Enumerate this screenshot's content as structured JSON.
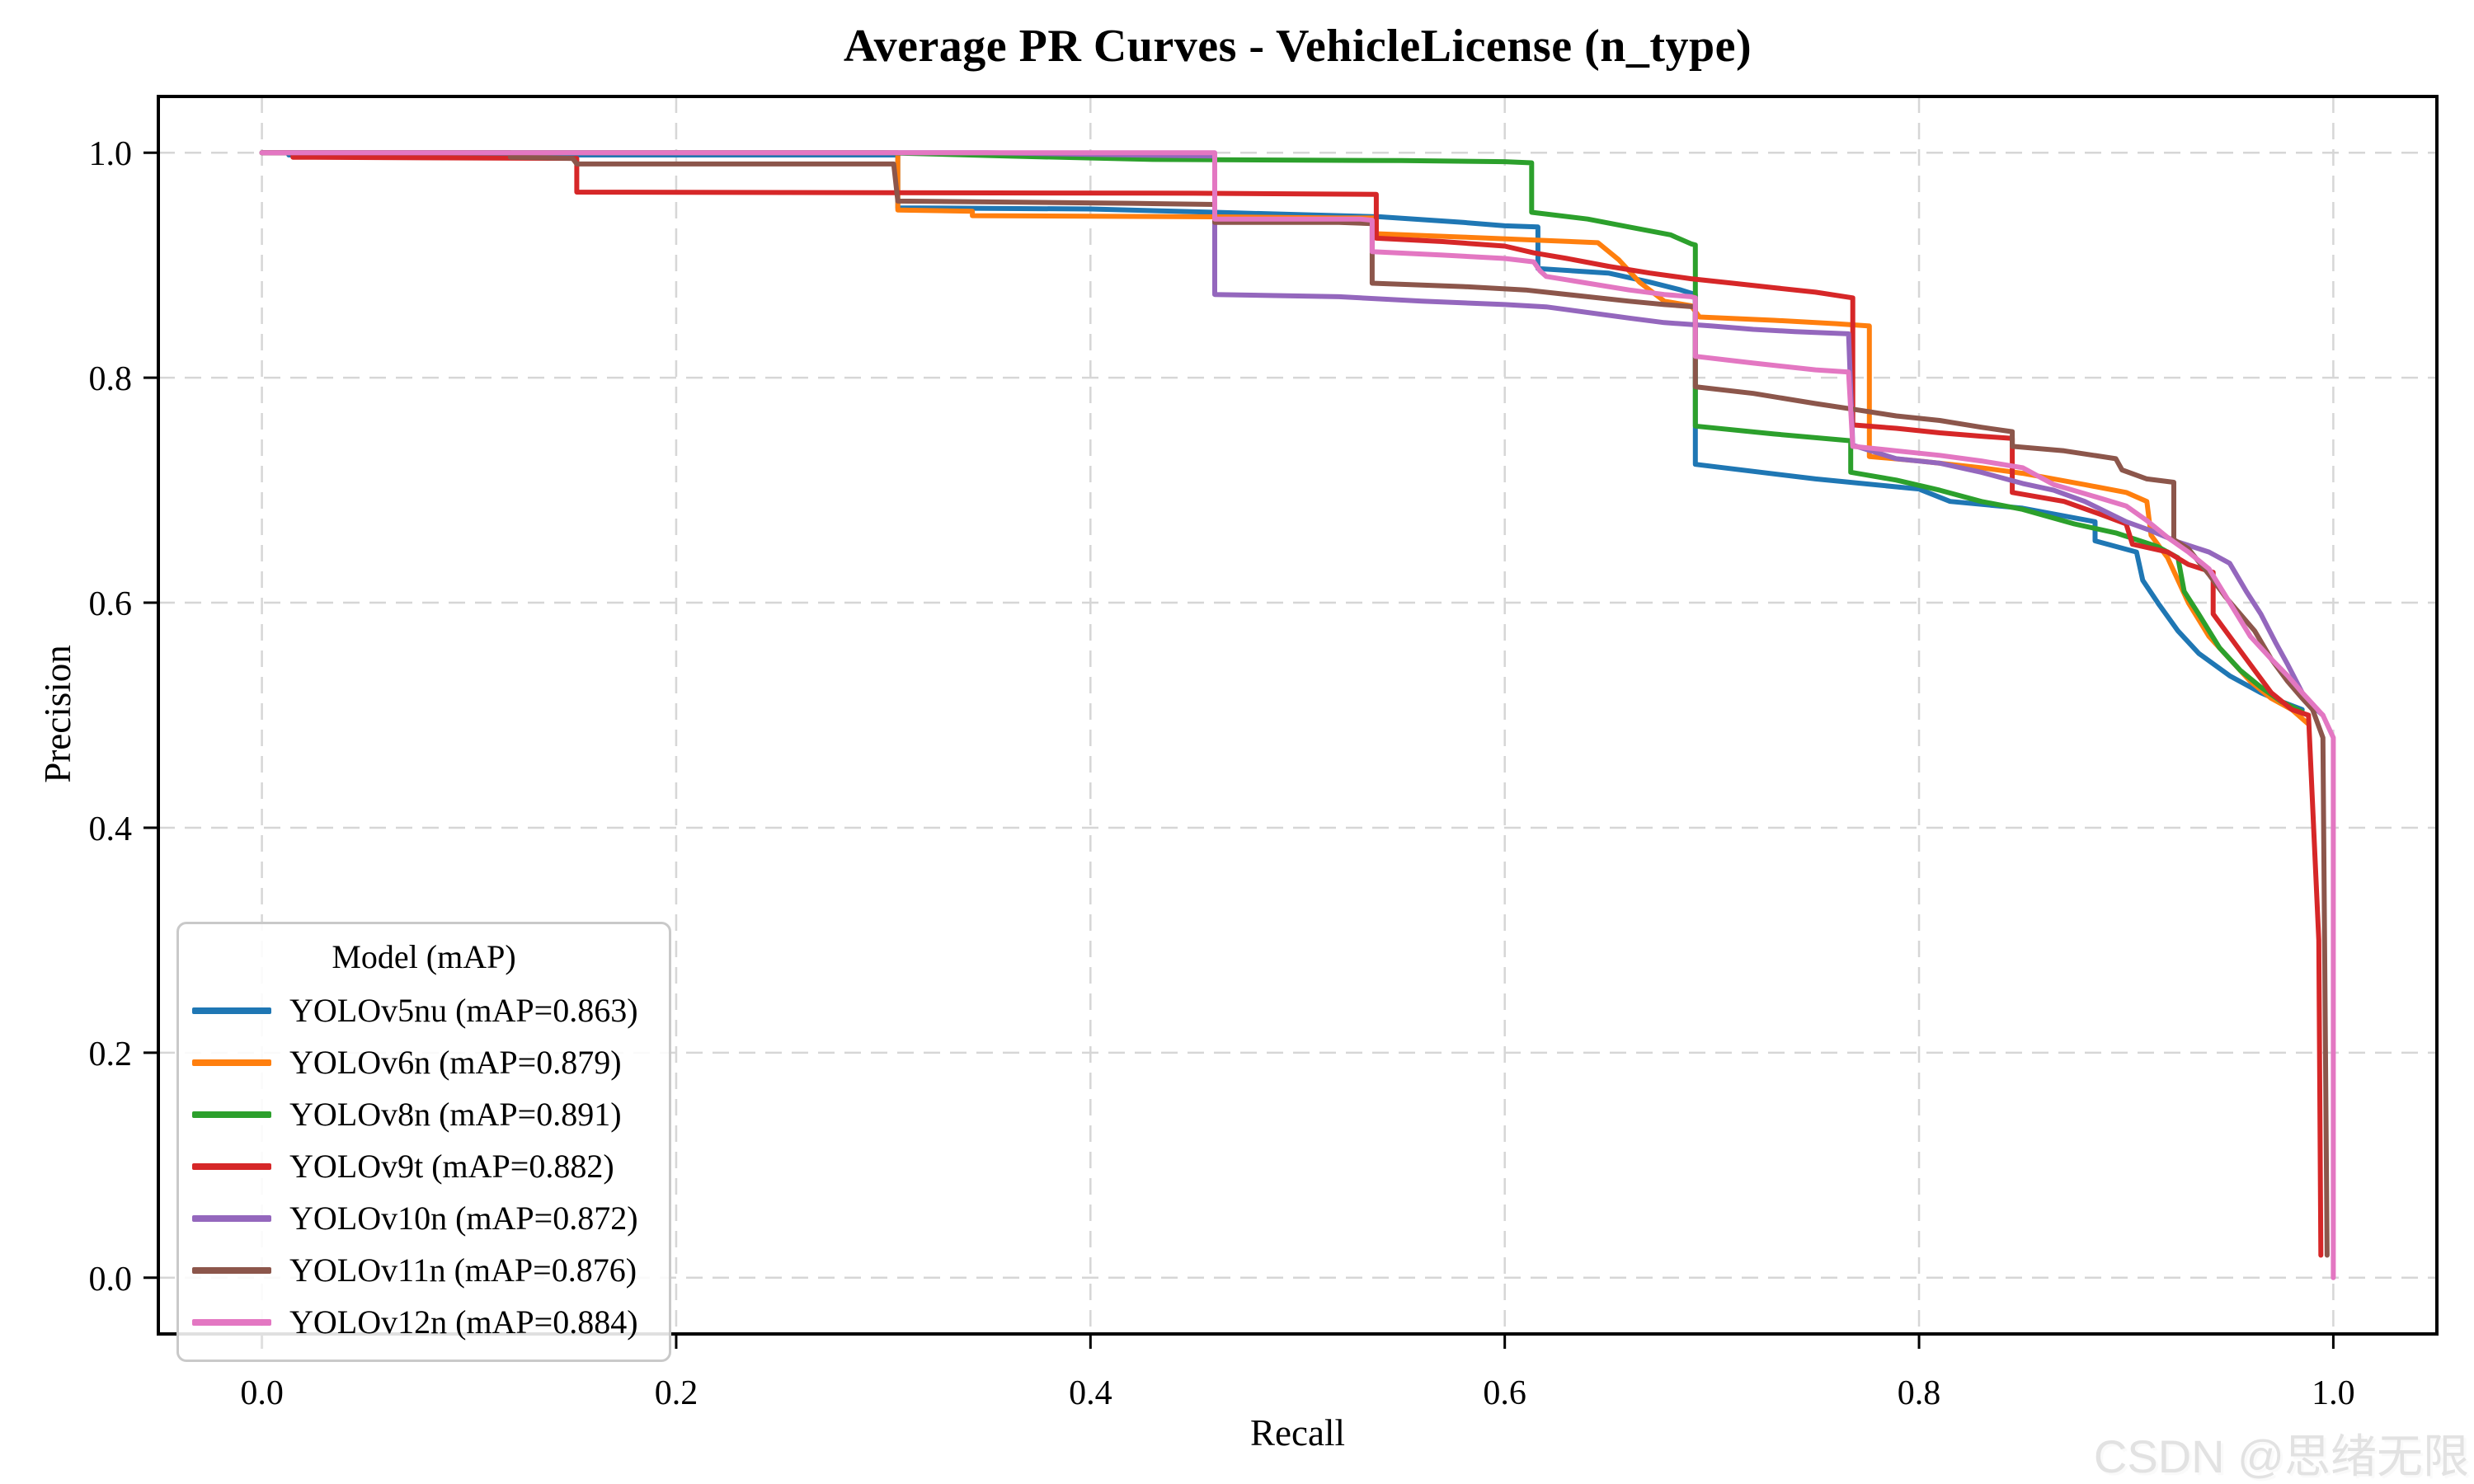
{
  "watermark": {
    "text": "CSDN @思绪无限"
  },
  "legend": {
    "title": "Model (mAP)"
  },
  "chart_data": {
    "type": "line",
    "title": "Average PR Curves - VehicleLicense (n_type)",
    "xlabel": "Recall",
    "ylabel": "Precision",
    "xlim": [
      -0.05,
      1.05
    ],
    "ylim": [
      -0.05,
      1.05
    ],
    "grid": true,
    "grid_style": "dashed",
    "legend_position": "lower left",
    "legend_title": "Model (mAP)",
    "xtick_labels": [
      "0.0",
      "0.2",
      "0.4",
      "0.6",
      "0.8",
      "1.0"
    ],
    "xtick_values": [
      0.0,
      0.2,
      0.4,
      0.6,
      0.8,
      1.0
    ],
    "ytick_labels": [
      "0.0",
      "0.2",
      "0.4",
      "0.6",
      "0.8",
      "1.0"
    ],
    "ytick_values": [
      0.0,
      0.2,
      0.4,
      0.6,
      0.8,
      1.0
    ],
    "series": [
      {
        "id": "yolov5nu",
        "name": "YOLOv5nu",
        "mAP": 0.863,
        "legend_label": "YOLOv5nu (mAP=0.863)",
        "color": "#1f77b4",
        "points": [
          [
            0,
            1.0
          ],
          [
            0.013,
            1.0
          ],
          [
            0.013,
            0.998
          ],
          [
            0.307,
            0.998
          ],
          [
            0.307,
            0.951
          ],
          [
            0.4,
            0.95
          ],
          [
            0.46,
            0.947
          ],
          [
            0.5,
            0.945
          ],
          [
            0.54,
            0.943
          ],
          [
            0.58,
            0.938
          ],
          [
            0.6,
            0.935
          ],
          [
            0.616,
            0.934
          ],
          [
            0.616,
            0.897
          ],
          [
            0.65,
            0.893
          ],
          [
            0.67,
            0.885
          ],
          [
            0.685,
            0.878
          ],
          [
            0.692,
            0.874
          ],
          [
            0.692,
            0.723
          ],
          [
            0.75,
            0.71
          ],
          [
            0.8,
            0.701
          ],
          [
            0.815,
            0.69
          ],
          [
            0.85,
            0.684
          ],
          [
            0.885,
            0.672
          ],
          [
            0.885,
            0.655
          ],
          [
            0.905,
            0.645
          ],
          [
            0.908,
            0.62
          ],
          [
            0.916,
            0.598
          ],
          [
            0.925,
            0.575
          ],
          [
            0.935,
            0.555
          ],
          [
            0.95,
            0.535
          ],
          [
            0.965,
            0.52
          ],
          [
            0.975,
            0.512
          ],
          [
            0.985,
            0.505
          ]
        ]
      },
      {
        "id": "yolov6n",
        "name": "YOLOv6n",
        "mAP": 0.879,
        "legend_label": "YOLOv6n (mAP=0.879)",
        "color": "#ff7f0e",
        "points": [
          [
            0,
            1.0
          ],
          [
            0.307,
            1.0
          ],
          [
            0.307,
            0.949
          ],
          [
            0.343,
            0.948
          ],
          [
            0.343,
            0.944
          ],
          [
            0.46,
            0.943
          ],
          [
            0.52,
            0.942
          ],
          [
            0.538,
            0.942
          ],
          [
            0.538,
            0.928
          ],
          [
            0.58,
            0.925
          ],
          [
            0.62,
            0.922
          ],
          [
            0.645,
            0.92
          ],
          [
            0.655,
            0.905
          ],
          [
            0.665,
            0.885
          ],
          [
            0.677,
            0.868
          ],
          [
            0.69,
            0.864
          ],
          [
            0.694,
            0.854
          ],
          [
            0.73,
            0.851
          ],
          [
            0.76,
            0.848
          ],
          [
            0.776,
            0.846
          ],
          [
            0.776,
            0.73
          ],
          [
            0.8,
            0.726
          ],
          [
            0.83,
            0.72
          ],
          [
            0.85,
            0.715
          ],
          [
            0.88,
            0.705
          ],
          [
            0.9,
            0.698
          ],
          [
            0.91,
            0.69
          ],
          [
            0.912,
            0.66
          ],
          [
            0.92,
            0.64
          ],
          [
            0.93,
            0.6
          ],
          [
            0.94,
            0.57
          ],
          [
            0.95,
            0.55
          ],
          [
            0.96,
            0.53
          ],
          [
            0.97,
            0.515
          ],
          [
            0.98,
            0.505
          ],
          [
            0.988,
            0.492
          ]
        ]
      },
      {
        "id": "yolov8n",
        "name": "YOLOv8n",
        "mAP": 0.891,
        "legend_label": "YOLOv8n (mAP=0.891)",
        "color": "#2ca02c",
        "points": [
          [
            0,
            1.0
          ],
          [
            0.3,
            1.0
          ],
          [
            0.36,
            0.997
          ],
          [
            0.43,
            0.994
          ],
          [
            0.55,
            0.993
          ],
          [
            0.6,
            0.992
          ],
          [
            0.613,
            0.991
          ],
          [
            0.613,
            0.947
          ],
          [
            0.64,
            0.941
          ],
          [
            0.66,
            0.934
          ],
          [
            0.68,
            0.927
          ],
          [
            0.69,
            0.919
          ],
          [
            0.692,
            0.918
          ],
          [
            0.692,
            0.757
          ],
          [
            0.73,
            0.75
          ],
          [
            0.767,
            0.744
          ],
          [
            0.767,
            0.716
          ],
          [
            0.789,
            0.709
          ],
          [
            0.81,
            0.7
          ],
          [
            0.83,
            0.69
          ],
          [
            0.85,
            0.683
          ],
          [
            0.875,
            0.67
          ],
          [
            0.895,
            0.662
          ],
          [
            0.915,
            0.65
          ],
          [
            0.925,
            0.64
          ],
          [
            0.928,
            0.61
          ],
          [
            0.935,
            0.59
          ],
          [
            0.945,
            0.56
          ],
          [
            0.955,
            0.54
          ],
          [
            0.965,
            0.525
          ],
          [
            0.975,
            0.512
          ],
          [
            0.985,
            0.503
          ]
        ]
      },
      {
        "id": "yolov9t",
        "name": "YOLOv9t",
        "mAP": 0.882,
        "legend_label": "YOLOv9t (mAP=0.882)",
        "color": "#d62728",
        "points": [
          [
            0,
            1.0
          ],
          [
            0.015,
            1.0
          ],
          [
            0.015,
            0.996
          ],
          [
            0.152,
            0.995
          ],
          [
            0.152,
            0.965
          ],
          [
            0.45,
            0.964
          ],
          [
            0.538,
            0.963
          ],
          [
            0.538,
            0.924
          ],
          [
            0.57,
            0.921
          ],
          [
            0.6,
            0.917
          ],
          [
            0.614,
            0.911
          ],
          [
            0.63,
            0.906
          ],
          [
            0.65,
            0.899
          ],
          [
            0.67,
            0.893
          ],
          [
            0.69,
            0.888
          ],
          [
            0.71,
            0.884
          ],
          [
            0.73,
            0.88
          ],
          [
            0.75,
            0.876
          ],
          [
            0.768,
            0.871
          ],
          [
            0.768,
            0.758
          ],
          [
            0.789,
            0.755
          ],
          [
            0.81,
            0.751
          ],
          [
            0.83,
            0.748
          ],
          [
            0.845,
            0.746
          ],
          [
            0.845,
            0.698
          ],
          [
            0.87,
            0.69
          ],
          [
            0.89,
            0.677
          ],
          [
            0.9,
            0.67
          ],
          [
            0.903,
            0.652
          ],
          [
            0.92,
            0.645
          ],
          [
            0.93,
            0.634
          ],
          [
            0.942,
            0.627
          ],
          [
            0.942,
            0.59
          ],
          [
            0.95,
            0.57
          ],
          [
            0.96,
            0.545
          ],
          [
            0.97,
            0.52
          ],
          [
            0.98,
            0.505
          ],
          [
            0.988,
            0.5
          ],
          [
            0.993,
            0.3
          ],
          [
            0.994,
            0.02
          ]
        ]
      },
      {
        "id": "yolov10n",
        "name": "YOLOv10n",
        "mAP": 0.872,
        "legend_label": "YOLOv10n (mAP=0.872)",
        "color": "#9467bd",
        "points": [
          [
            0,
            1.0
          ],
          [
            0.35,
            1.0
          ],
          [
            0.42,
            0.998
          ],
          [
            0.46,
            0.997
          ],
          [
            0.46,
            0.874
          ],
          [
            0.52,
            0.872
          ],
          [
            0.56,
            0.868
          ],
          [
            0.6,
            0.865
          ],
          [
            0.62,
            0.863
          ],
          [
            0.66,
            0.853
          ],
          [
            0.677,
            0.849
          ],
          [
            0.7,
            0.846
          ],
          [
            0.72,
            0.843
          ],
          [
            0.74,
            0.841
          ],
          [
            0.766,
            0.839
          ],
          [
            0.768,
            0.74
          ],
          [
            0.789,
            0.728
          ],
          [
            0.81,
            0.724
          ],
          [
            0.83,
            0.716
          ],
          [
            0.85,
            0.706
          ],
          [
            0.865,
            0.7
          ],
          [
            0.88,
            0.69
          ],
          [
            0.9,
            0.672
          ],
          [
            0.912,
            0.664
          ],
          [
            0.925,
            0.654
          ],
          [
            0.94,
            0.645
          ],
          [
            0.95,
            0.635
          ],
          [
            0.958,
            0.61
          ],
          [
            0.965,
            0.59
          ],
          [
            0.972,
            0.565
          ],
          [
            0.978,
            0.545
          ],
          [
            0.985,
            0.52
          ],
          [
            0.99,
            0.508
          ],
          [
            0.995,
            0.5
          ]
        ]
      },
      {
        "id": "yolov11n",
        "name": "YOLOv11n",
        "mAP": 0.876,
        "legend_label": "YOLOv11n (mAP=0.876)",
        "color": "#8c564b",
        "points": [
          [
            0,
            1.0
          ],
          [
            0.12,
            1.0
          ],
          [
            0.12,
            0.996
          ],
          [
            0.15,
            0.995
          ],
          [
            0.152,
            0.99
          ],
          [
            0.305,
            0.99
          ],
          [
            0.307,
            0.957
          ],
          [
            0.42,
            0.955
          ],
          [
            0.46,
            0.954
          ],
          [
            0.46,
            0.938
          ],
          [
            0.52,
            0.938
          ],
          [
            0.536,
            0.937
          ],
          [
            0.536,
            0.884
          ],
          [
            0.58,
            0.881
          ],
          [
            0.61,
            0.878
          ],
          [
            0.64,
            0.872
          ],
          [
            0.66,
            0.868
          ],
          [
            0.677,
            0.865
          ],
          [
            0.692,
            0.863
          ],
          [
            0.692,
            0.792
          ],
          [
            0.72,
            0.786
          ],
          [
            0.75,
            0.777
          ],
          [
            0.768,
            0.772
          ],
          [
            0.789,
            0.766
          ],
          [
            0.81,
            0.762
          ],
          [
            0.83,
            0.756
          ],
          [
            0.845,
            0.752
          ],
          [
            0.845,
            0.739
          ],
          [
            0.87,
            0.735
          ],
          [
            0.895,
            0.728
          ],
          [
            0.898,
            0.718
          ],
          [
            0.91,
            0.71
          ],
          [
            0.923,
            0.707
          ],
          [
            0.923,
            0.656
          ],
          [
            0.93,
            0.648
          ],
          [
            0.94,
            0.625
          ],
          [
            0.948,
            0.605
          ],
          [
            0.955,
            0.59
          ],
          [
            0.962,
            0.575
          ],
          [
            0.97,
            0.55
          ],
          [
            0.978,
            0.53
          ],
          [
            0.985,
            0.515
          ],
          [
            0.99,
            0.505
          ],
          [
            0.995,
            0.48
          ],
          [
            0.997,
            0.02
          ]
        ]
      },
      {
        "id": "yolov12n",
        "name": "YOLOv12n",
        "mAP": 0.884,
        "legend_label": "YOLOv12n (mAP=0.884)",
        "color": "#e377c2",
        "points": [
          [
            0,
            1.0
          ],
          [
            0.46,
            1.0
          ],
          [
            0.46,
            0.941
          ],
          [
            0.53,
            0.941
          ],
          [
            0.536,
            0.94
          ],
          [
            0.536,
            0.912
          ],
          [
            0.57,
            0.909
          ],
          [
            0.6,
            0.906
          ],
          [
            0.614,
            0.903
          ],
          [
            0.617,
            0.895
          ],
          [
            0.62,
            0.89
          ],
          [
            0.64,
            0.884
          ],
          [
            0.66,
            0.878
          ],
          [
            0.677,
            0.874
          ],
          [
            0.69,
            0.872
          ],
          [
            0.692,
            0.871
          ],
          [
            0.692,
            0.819
          ],
          [
            0.72,
            0.813
          ],
          [
            0.75,
            0.807
          ],
          [
            0.766,
            0.805
          ],
          [
            0.768,
            0.739
          ],
          [
            0.789,
            0.735
          ],
          [
            0.81,
            0.731
          ],
          [
            0.83,
            0.726
          ],
          [
            0.85,
            0.72
          ],
          [
            0.865,
            0.705
          ],
          [
            0.88,
            0.697
          ],
          [
            0.9,
            0.686
          ],
          [
            0.91,
            0.673
          ],
          [
            0.92,
            0.658
          ],
          [
            0.93,
            0.645
          ],
          [
            0.94,
            0.63
          ],
          [
            0.95,
            0.6
          ],
          [
            0.96,
            0.57
          ],
          [
            0.97,
            0.55
          ],
          [
            0.978,
            0.535
          ],
          [
            0.985,
            0.52
          ],
          [
            0.99,
            0.51
          ],
          [
            0.995,
            0.5
          ],
          [
            1.0,
            0.48
          ],
          [
            1.0,
            0.0
          ]
        ]
      }
    ]
  }
}
